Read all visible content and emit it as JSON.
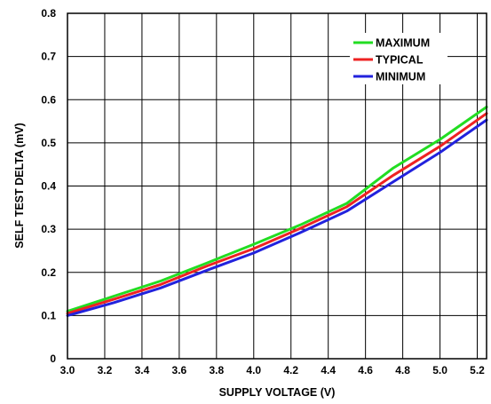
{
  "chart_data": {
    "type": "line",
    "xlabel": "SUPPLY VOLTAGE (V)",
    "ylabel": "SELF TEST DELTA (mV)",
    "xlim": [
      3.0,
      5.25
    ],
    "ylim": [
      0,
      0.8
    ],
    "grid": true,
    "legend_position": "top-right",
    "x_ticks": [
      "3.0",
      "3.2",
      "3.4",
      "3.6",
      "3.8",
      "4.0",
      "4.2",
      "4.4",
      "4.6",
      "4.8",
      "5.0",
      "5.2"
    ],
    "y_ticks": [
      "0",
      "0.1",
      "0.2",
      "0.3",
      "0.4",
      "0.5",
      "0.6",
      "0.7",
      "0.8"
    ],
    "series": [
      {
        "name": "MAXIMUM",
        "color": "#22dd22",
        "x": [
          3.0,
          3.25,
          3.5,
          3.75,
          4.0,
          4.25,
          4.5,
          4.75,
          5.0,
          5.25
        ],
        "y": [
          0.11,
          0.145,
          0.18,
          0.222,
          0.265,
          0.31,
          0.36,
          0.442,
          0.508,
          0.583
        ]
      },
      {
        "name": "TYPICAL",
        "color": "#ee2222",
        "x": [
          3.0,
          3.25,
          3.5,
          3.75,
          4.0,
          4.25,
          4.5,
          4.75,
          5.0,
          5.25
        ],
        "y": [
          0.105,
          0.138,
          0.172,
          0.215,
          0.255,
          0.302,
          0.352,
          0.425,
          0.492,
          0.568
        ]
      },
      {
        "name": "MINIMUM",
        "color": "#2222dd",
        "x": [
          3.0,
          3.25,
          3.5,
          3.75,
          4.0,
          4.25,
          4.5,
          4.75,
          5.0,
          5.25
        ],
        "y": [
          0.1,
          0.13,
          0.164,
          0.205,
          0.245,
          0.292,
          0.342,
          0.41,
          0.478,
          0.553
        ]
      }
    ]
  }
}
